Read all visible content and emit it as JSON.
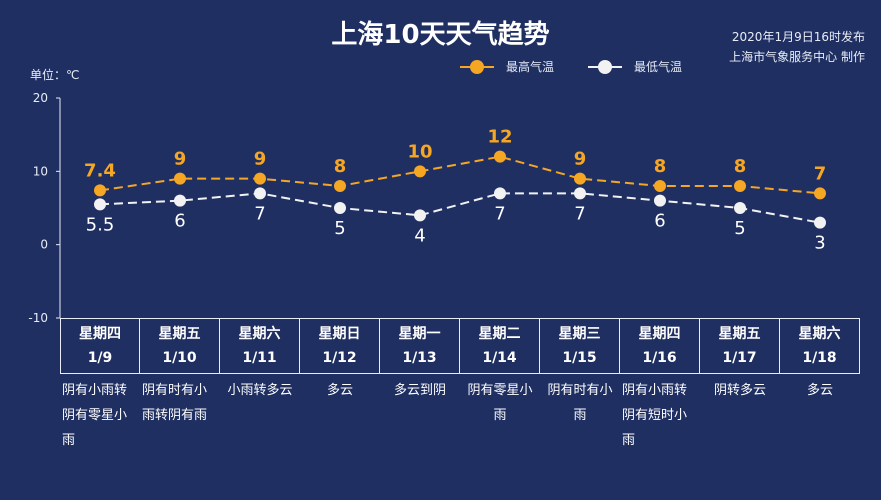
{
  "title": "上海10天天气趋势",
  "publish": {
    "time": "2020年1月9日16时发布",
    "producer": "上海市气象服务中心 制作"
  },
  "unit_label": "单位：℃",
  "colors": {
    "background": "#1f2f62",
    "high": "#f5a623",
    "low": "#f2f2f2",
    "high_label": "#f5a623",
    "low_label": "#ffffff"
  },
  "chart_data": {
    "type": "line",
    "title": "上海10天天气趋势",
    "ylabel": "单位：℃",
    "ylim": [
      -10,
      20
    ],
    "yticks": [
      -10,
      0,
      10,
      20
    ],
    "categories": [
      "1/9",
      "1/10",
      "1/11",
      "1/12",
      "1/13",
      "1/14",
      "1/15",
      "1/16",
      "1/17",
      "1/18"
    ],
    "series": [
      {
        "name": "最高气温",
        "values": [
          7.4,
          9,
          9,
          8,
          10,
          12,
          9,
          8,
          8,
          7
        ],
        "labels": [
          "7.4",
          "9",
          "9",
          "8",
          "10",
          "12",
          "9",
          "8",
          "8",
          "7"
        ],
        "color": "#f5a623",
        "dashed": true
      },
      {
        "name": "最低气温",
        "values": [
          5.5,
          6,
          7,
          5,
          4,
          7,
          7,
          6,
          5,
          3
        ],
        "labels": [
          "5.5",
          "6",
          "7",
          "5",
          "4",
          "7",
          "7",
          "6",
          "5",
          "3"
        ],
        "color": "#f2f2f2",
        "dashed": true
      }
    ],
    "legend": "top-right",
    "grid": false
  },
  "days": [
    {
      "weekday": "星期四",
      "date": "1/9",
      "weather": "阴有小雨转阴有零星小雨"
    },
    {
      "weekday": "星期五",
      "date": "1/10",
      "weather": "阴有时有小雨转阴有雨"
    },
    {
      "weekday": "星期六",
      "date": "1/11",
      "weather": "小雨转多云"
    },
    {
      "weekday": "星期日",
      "date": "1/12",
      "weather": "多云"
    },
    {
      "weekday": "星期一",
      "date": "1/13",
      "weather": "多云到阴"
    },
    {
      "weekday": "星期二",
      "date": "1/14",
      "weather": "阴有零星小雨"
    },
    {
      "weekday": "星期三",
      "date": "1/15",
      "weather": "阴有时有小雨"
    },
    {
      "weekday": "星期四",
      "date": "1/16",
      "weather": "阴有小雨转阴有短时小雨"
    },
    {
      "weekday": "星期五",
      "date": "1/17",
      "weather": "阴转多云"
    },
    {
      "weekday": "星期六",
      "date": "1/18",
      "weather": "多云"
    }
  ]
}
